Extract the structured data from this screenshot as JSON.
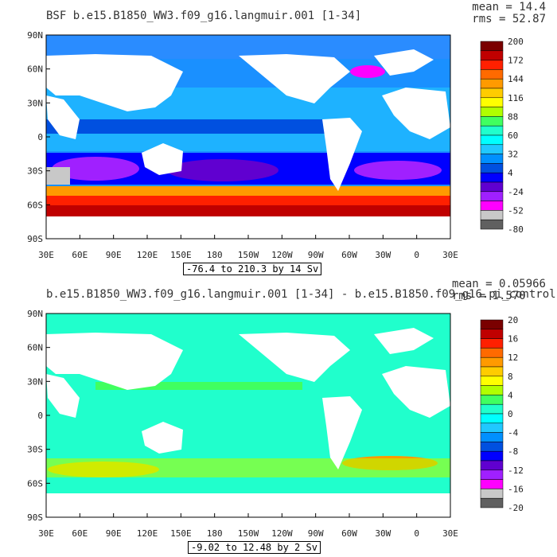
{
  "chart_data": [
    {
      "type": "heatmap",
      "title": "BSF b.e15.B1850_WW3.f09_g16.langmuir.001 [1-34]",
      "stats": {
        "mean": "mean = 14.4",
        "rms": "rms = 52.87"
      },
      "range_label": "-76.4 to 210.3 by 14 Sv",
      "x_ticks": [
        "30E",
        "60E",
        "90E",
        "120E",
        "150E",
        "180",
        "150W",
        "120W",
        "90W",
        "60W",
        "30W",
        "0",
        "30E"
      ],
      "y_ticks": [
        "90N",
        "60N",
        "30N",
        "0",
        "30S",
        "60S",
        "90S"
      ],
      "legend_labels": [
        "200",
        "172",
        "144",
        "116",
        "88",
        "60",
        "32",
        "4",
        "-24",
        "-52",
        "-80"
      ],
      "legend_colors": [
        "#7a0000",
        "#c00000",
        "#ff2000",
        "#ff6a00",
        "#ff9a00",
        "#ffcc00",
        "#ffff00",
        "#b0ff00",
        "#40ff60",
        "#20ffcc",
        "#00ffff",
        "#20c8ff",
        "#0090ff",
        "#0050e0",
        "#0000ff",
        "#6000d0",
        "#a020ff",
        "#ff00ff",
        "#c8c8c8",
        "#606060"
      ]
    },
    {
      "type": "heatmap",
      "title": "b.e15.B1850_WW3.f09_g16.langmuir.001 [1-34] - b.e15.B1850.f09_g16.pi_control",
      "stats": {
        "mean": "mean = 0.05966",
        "rms": "rms = 1.570"
      },
      "range_label": "-9.02 to 12.48 by 2 Sv",
      "x_ticks": [
        "30E",
        "60E",
        "90E",
        "120E",
        "150E",
        "180",
        "150W",
        "120W",
        "90W",
        "60W",
        "30W",
        "0",
        "30E"
      ],
      "y_ticks": [
        "90N",
        "60N",
        "30N",
        "0",
        "30S",
        "60S",
        "90S"
      ],
      "legend_labels": [
        "20",
        "16",
        "12",
        "8",
        "4",
        "0",
        "-4",
        "-8",
        "-12",
        "-16",
        "-20"
      ],
      "legend_colors": [
        "#7a0000",
        "#c00000",
        "#ff2000",
        "#ff6a00",
        "#ff9a00",
        "#ffcc00",
        "#ffff00",
        "#b0ff00",
        "#40ff60",
        "#20ffcc",
        "#00ffff",
        "#20c8ff",
        "#0090ff",
        "#0050e0",
        "#0000ff",
        "#6000d0",
        "#a020ff",
        "#ff00ff",
        "#c8c8c8",
        "#606060"
      ]
    }
  ]
}
